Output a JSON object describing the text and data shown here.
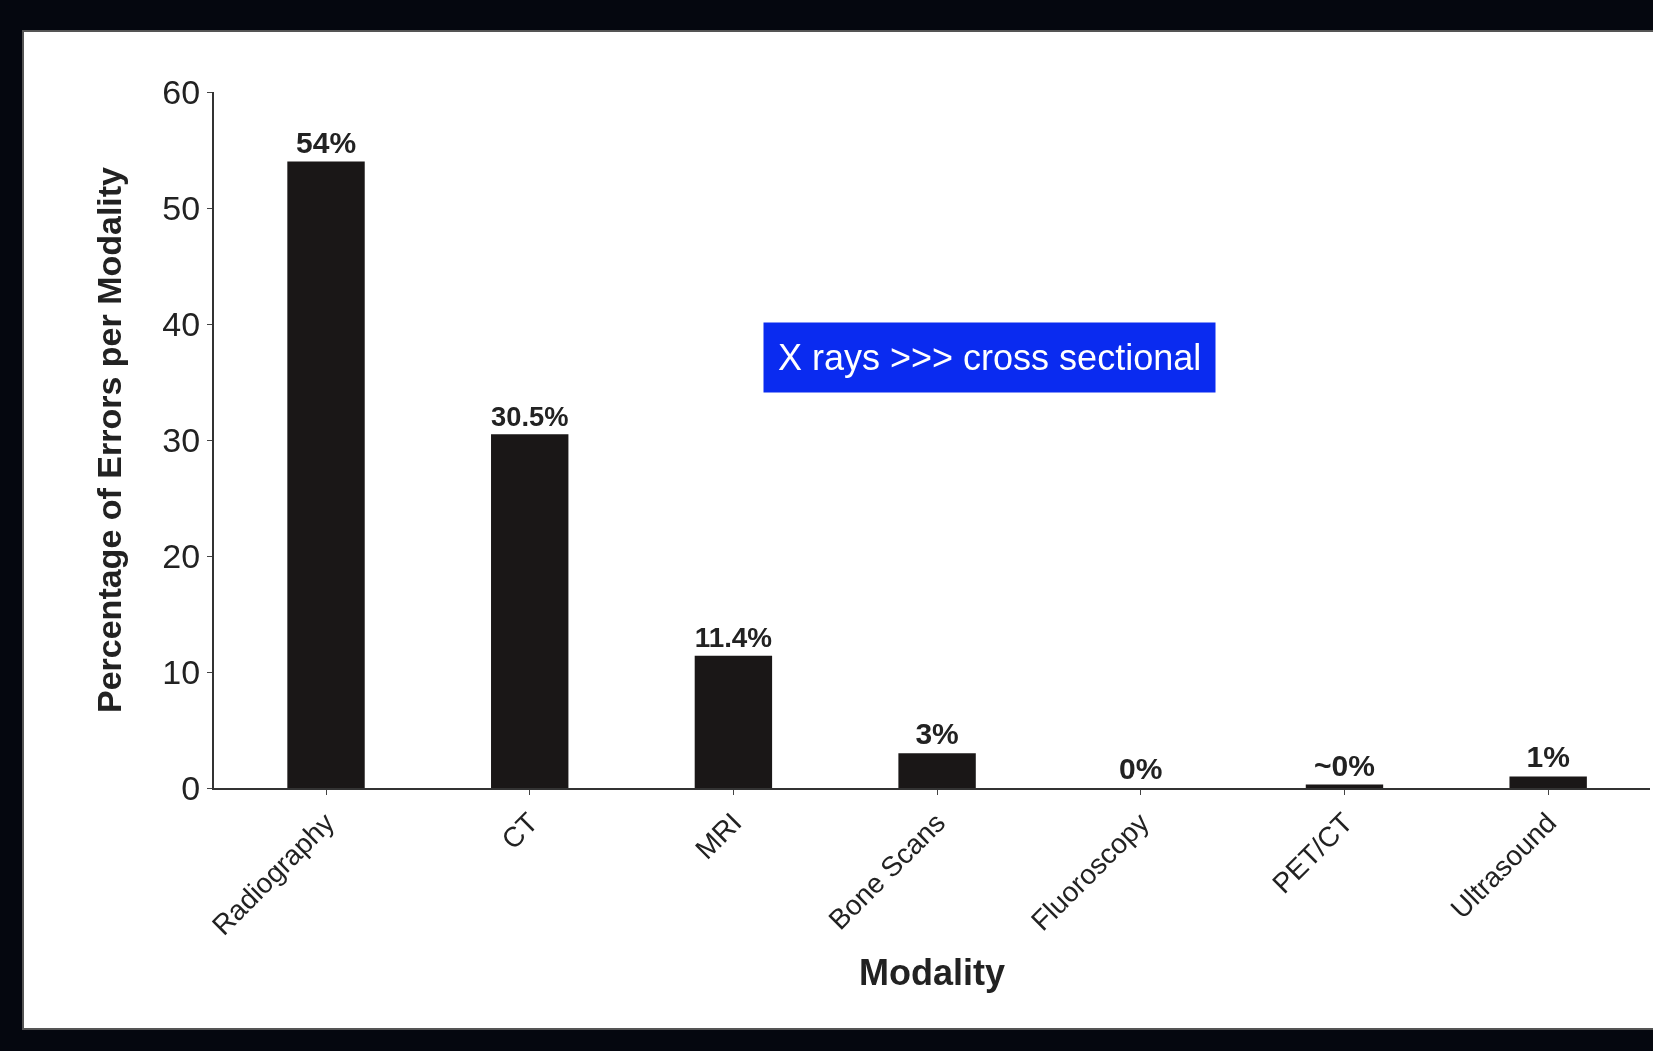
{
  "chart_data": {
    "type": "bar",
    "xlabel": "Modality",
    "ylabel": "Percentage of Errors per Modality",
    "categories": [
      "Radiography",
      "CT",
      "MRI",
      "Bone Scans",
      "Fluoroscopy",
      "PET/CT",
      "Ultrasound"
    ],
    "values": [
      54,
      30.5,
      11.4,
      3,
      0,
      0.3,
      1
    ],
    "value_labels": [
      "54%",
      "30.5%",
      "11.4%",
      "3%",
      "0%",
      "~0%",
      "1%"
    ],
    "color": "#1a1717",
    "ylim": [
      0,
      60
    ],
    "yticks": [
      0,
      10,
      20,
      30,
      40,
      50,
      60
    ],
    "grid": false,
    "annotations": [
      "X rays >>> cross sectional"
    ]
  }
}
